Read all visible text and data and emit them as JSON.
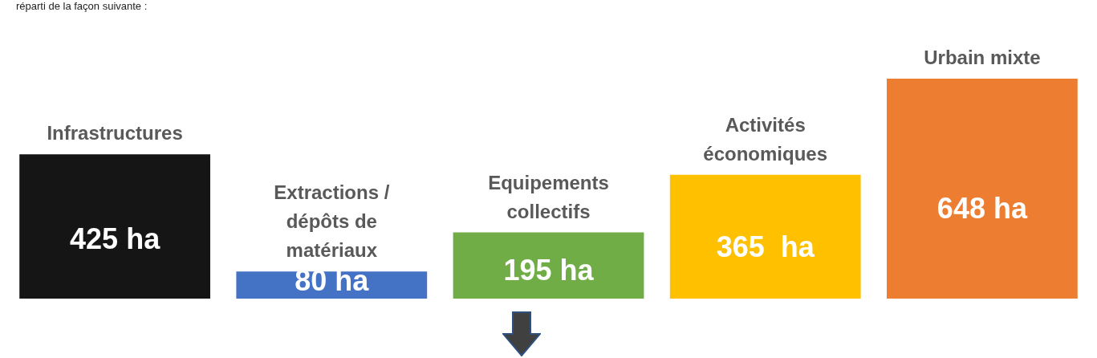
{
  "chart_data": {
    "type": "bar",
    "categories": [
      "Infrastructures",
      "Extractions / dépôts de matériaux",
      "Equipements collectifs",
      "Activités économiques",
      "Urbain mixte"
    ],
    "values": [
      425,
      80,
      195,
      365,
      648
    ],
    "colors": [
      "#151515",
      "#4472c4",
      "#70ad47",
      "#ffc000",
      "#ed7d31"
    ],
    "value_labels": [
      "425 ha",
      "80 ha",
      "195 ha",
      "365  ha",
      "648 ha"
    ],
    "legend": false,
    "annotations": [
      "réparti de la façon suivante :"
    ]
  }
}
